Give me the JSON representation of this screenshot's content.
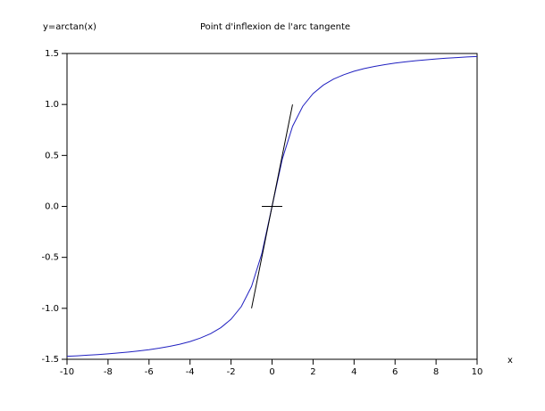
{
  "chart_data": {
    "type": "line",
    "title": "Point d'inflexion de l'arc tangente",
    "y_label": "y=arctan(x)",
    "x_label": "x",
    "xlim": [
      -10,
      10
    ],
    "ylim": [
      -1.5,
      1.5
    ],
    "xticks": [
      -10,
      -8,
      -6,
      -4,
      -2,
      0,
      2,
      4,
      6,
      8,
      10
    ],
    "yticks": [
      -1.5,
      {
        "value": -1.0,
        "label": "-1.0"
      },
      -0.5,
      {
        "value": 0,
        "label": "0.0"
      },
      0.5,
      {
        "value": 1.0,
        "label": "1.0"
      },
      1.5
    ],
    "series": [
      {
        "color": "#2020c0",
        "x": [
          -10,
          -9.5,
          -9,
          -8.5,
          -8,
          -7.5,
          -7,
          -6.5,
          -6,
          -5.5,
          -5,
          -4.5,
          -4,
          -3.5,
          -3,
          -2.5,
          -2,
          -1.5,
          -1,
          -0.5,
          0,
          0.5,
          1,
          1.5,
          2,
          2.5,
          3,
          3.5,
          4,
          4.5,
          5,
          5.5,
          6,
          6.5,
          7,
          7.5,
          8,
          8.5,
          9,
          9.5,
          10
        ],
        "values": [
          -1.471,
          -1.466,
          -1.46,
          -1.454,
          -1.446,
          -1.438,
          -1.429,
          -1.418,
          -1.406,
          -1.391,
          -1.373,
          -1.352,
          -1.326,
          -1.292,
          -1.249,
          -1.19,
          -1.107,
          -0.983,
          -0.785,
          -0.464,
          0,
          0.464,
          0.785,
          0.983,
          1.107,
          1.19,
          1.249,
          1.292,
          1.326,
          1.352,
          1.373,
          1.391,
          1.406,
          1.418,
          1.429,
          1.438,
          1.446,
          1.454,
          1.46,
          1.466,
          1.471
        ]
      },
      {
        "color": "#000000",
        "x": [
          -1,
          1
        ],
        "values": [
          -1,
          1
        ]
      },
      {
        "color": "#000000",
        "x": [
          -0.5,
          0.5
        ],
        "values": [
          0,
          0
        ]
      }
    ]
  }
}
